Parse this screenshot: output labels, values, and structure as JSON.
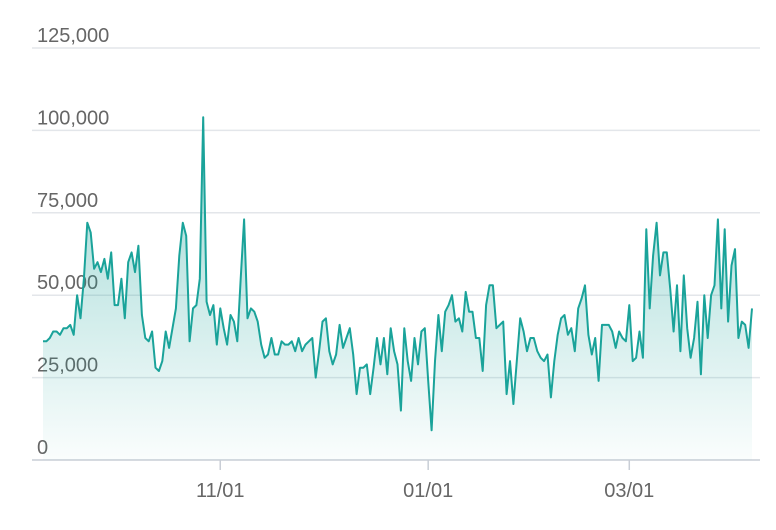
{
  "chart_data": {
    "type": "area",
    "x": [
      "09/10",
      "09/11",
      "09/12",
      "09/13",
      "09/14",
      "09/15",
      "09/16",
      "09/17",
      "09/18",
      "09/19",
      "09/20",
      "09/21",
      "09/22",
      "09/23",
      "09/24",
      "09/25",
      "09/26",
      "09/27",
      "09/28",
      "09/29",
      "09/30",
      "10/01",
      "10/02",
      "10/03",
      "10/04",
      "10/05",
      "10/06",
      "10/07",
      "10/08",
      "10/09",
      "10/10",
      "10/11",
      "10/12",
      "10/13",
      "10/14",
      "10/15",
      "10/16",
      "10/17",
      "10/18",
      "10/19",
      "10/20",
      "10/21",
      "10/22",
      "10/23",
      "10/24",
      "10/25",
      "10/26",
      "10/27",
      "10/28",
      "10/29",
      "10/30",
      "10/31",
      "11/01",
      "11/02",
      "11/03",
      "11/04",
      "11/05",
      "11/06",
      "11/07",
      "11/08",
      "11/09",
      "11/10",
      "11/11",
      "11/12",
      "11/13",
      "11/14",
      "11/15",
      "11/16",
      "11/17",
      "11/18",
      "11/19",
      "11/20",
      "11/21",
      "11/22",
      "11/23",
      "11/24",
      "11/25",
      "11/26",
      "11/27",
      "11/28",
      "11/29",
      "11/30",
      "12/01",
      "12/02",
      "12/03",
      "12/04",
      "12/05",
      "12/06",
      "12/07",
      "12/08",
      "12/09",
      "12/10",
      "12/11",
      "12/12",
      "12/13",
      "12/14",
      "12/15",
      "12/16",
      "12/17",
      "12/18",
      "12/19",
      "12/20",
      "12/21",
      "12/22",
      "12/23",
      "12/24",
      "12/25",
      "12/26",
      "12/27",
      "12/28",
      "12/29",
      "12/30",
      "12/31",
      "01/01",
      "01/02",
      "01/03",
      "01/04",
      "01/05",
      "01/06",
      "01/07",
      "01/08",
      "01/09",
      "01/10",
      "01/11",
      "01/12",
      "01/13",
      "01/14",
      "01/15",
      "01/16",
      "01/17",
      "01/18",
      "01/19",
      "01/20",
      "01/21",
      "01/22",
      "01/23",
      "01/24",
      "01/25",
      "01/26",
      "01/27",
      "01/28",
      "01/29",
      "01/30",
      "01/31",
      "02/01",
      "02/02",
      "02/03",
      "02/04",
      "02/05",
      "02/06",
      "02/07",
      "02/08",
      "02/09",
      "02/10",
      "02/11",
      "02/12",
      "02/13",
      "02/14",
      "02/15",
      "02/16",
      "02/17",
      "02/18",
      "02/19",
      "02/20",
      "02/21",
      "02/22",
      "02/23",
      "02/24",
      "02/25",
      "02/26",
      "02/27",
      "02/28",
      "03/01",
      "03/02",
      "03/03",
      "03/04",
      "03/05",
      "03/06",
      "03/07",
      "03/08",
      "03/09",
      "03/10",
      "03/11",
      "03/12",
      "03/13",
      "03/14",
      "03/15",
      "03/16",
      "03/17",
      "03/18",
      "03/19",
      "03/20",
      "03/21",
      "03/22",
      "03/23",
      "03/24",
      "03/25",
      "03/26",
      "03/27",
      "03/28",
      "03/29",
      "03/30",
      "03/31",
      "04/01",
      "04/02",
      "04/03",
      "04/04",
      "04/05",
      "04/06"
    ],
    "series": [
      {
        "color": "#1aa39a",
        "values": [
          36000,
          36000,
          37000,
          39000,
          39000,
          38000,
          40000,
          40000,
          41000,
          38000,
          50000,
          43000,
          55000,
          72000,
          69000,
          58000,
          60000,
          57000,
          61000,
          55000,
          63000,
          47000,
          47000,
          55000,
          43000,
          60000,
          63000,
          57000,
          65000,
          44000,
          37000,
          36000,
          39000,
          28000,
          27000,
          30000,
          39000,
          34000,
          40000,
          46000,
          62000,
          72000,
          68000,
          36000,
          46000,
          47000,
          55000,
          104000,
          48000,
          44000,
          47000,
          35000,
          46000,
          40000,
          35000,
          44000,
          42000,
          36000,
          55000,
          73000,
          43000,
          46000,
          45000,
          42000,
          35000,
          31000,
          32000,
          37000,
          32000,
          32000,
          36000,
          35000,
          35000,
          36000,
          33000,
          37000,
          33000,
          35000,
          36000,
          37000,
          25000,
          33000,
          42000,
          43000,
          33000,
          29000,
          32000,
          41000,
          34000,
          37000,
          40000,
          32000,
          20000,
          28000,
          28000,
          29000,
          20000,
          28000,
          37000,
          29000,
          37000,
          26000,
          40000,
          33000,
          29000,
          15000,
          40000,
          30000,
          24000,
          37000,
          29000,
          39000,
          40000,
          24000,
          9000,
          30000,
          44000,
          33000,
          45000,
          47000,
          50000,
          42000,
          43000,
          39000,
          51000,
          45000,
          45000,
          37000,
          37000,
          27000,
          47000,
          53000,
          53000,
          40000,
          41000,
          42000,
          20000,
          30000,
          17000,
          30000,
          43000,
          39000,
          33000,
          37000,
          37000,
          33000,
          31000,
          30000,
          32000,
          19000,
          30000,
          38000,
          43000,
          44000,
          38000,
          40000,
          33000,
          46000,
          49000,
          53000,
          38000,
          32000,
          37000,
          24000,
          41000,
          41000,
          41000,
          39000,
          34000,
          39000,
          37000,
          36000,
          47000,
          30000,
          31000,
          39000,
          31000,
          70000,
          46000,
          62000,
          72000,
          56000,
          63000,
          63000,
          52000,
          39000,
          53000,
          33000,
          56000,
          40000,
          31000,
          37000,
          48000,
          26000,
          50000,
          37000,
          50000,
          53000,
          73000,
          46000,
          70000,
          42000,
          59000,
          64000,
          37000,
          42000,
          41000,
          34000,
          46000
        ]
      }
    ],
    "ylim": [
      0,
      125000
    ],
    "yticks": [
      0,
      {
        "value": 25000,
        "label": "25,000"
      },
      {
        "value": 50000,
        "label": "50,000"
      },
      {
        "value": 75000,
        "label": "75,000"
      },
      {
        "value": 100000,
        "label": "100,000"
      },
      {
        "value": 125000,
        "label": "125,000"
      }
    ],
    "xticks": [
      "11/01",
      "01/01",
      "03/01"
    ],
    "grid": true
  }
}
